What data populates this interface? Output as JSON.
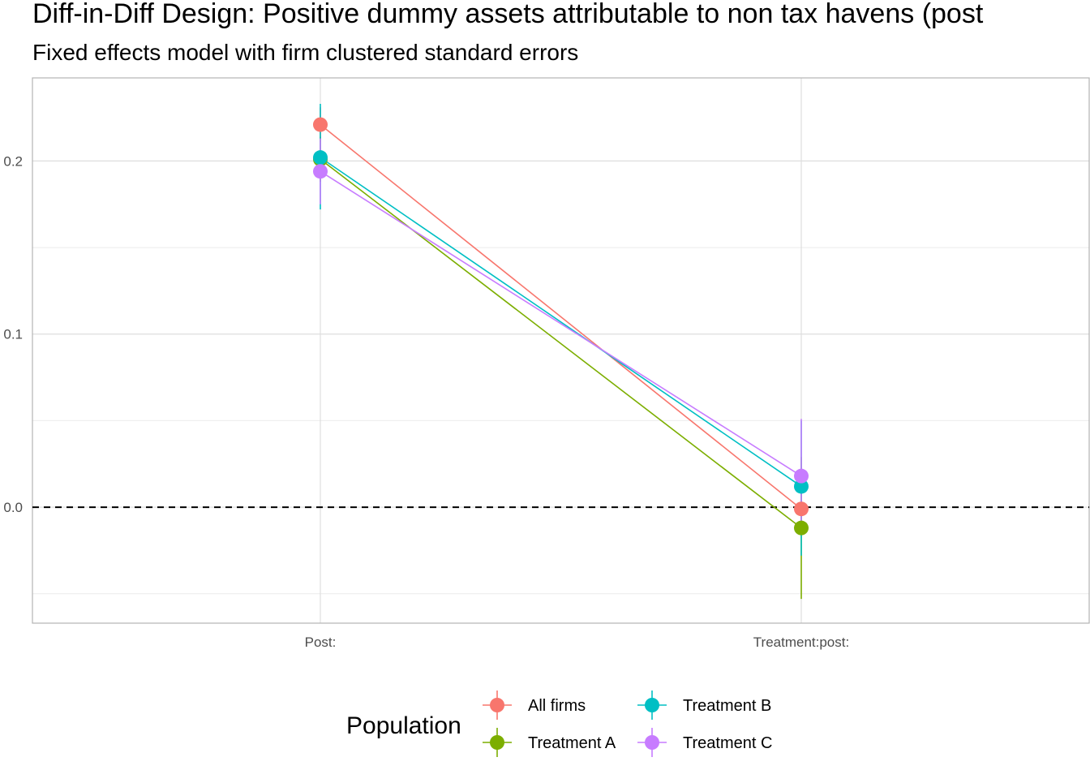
{
  "chart_data": {
    "type": "line",
    "title": "Diff-in-Diff Design: Positive dummy assets attributable to non tax havens (post",
    "subtitle": "Fixed effects model with firm clustered standard errors",
    "xlabel": "",
    "ylabel": "",
    "categories": [
      "Post:",
      "Treatment:post:"
    ],
    "ylim": [
      -0.067,
      0.248
    ],
    "y_ticks": [
      0.0,
      0.1,
      0.2
    ],
    "y_tick_labels": [
      "0.0",
      "0.1",
      "0.2"
    ],
    "grid": true,
    "reference_line": {
      "y": 0.0,
      "style": "dashed"
    },
    "legend": {
      "title": "Population",
      "position": "bottom"
    },
    "series": [
      {
        "name": "All firms",
        "color": "#F8766D",
        "values": [
          0.221,
          -0.001
        ],
        "lower": [
          0.211,
          -0.012
        ],
        "upper": [
          0.231,
          0.01
        ]
      },
      {
        "name": "Treatment A",
        "color": "#7CAE00",
        "values": [
          0.201,
          -0.012
        ],
        "lower": [
          0.188,
          -0.053
        ],
        "upper": [
          0.214,
          0.029
        ]
      },
      {
        "name": "Treatment B",
        "color": "#00BFC4",
        "values": [
          0.202,
          0.012
        ],
        "lower": [
          0.172,
          -0.028
        ],
        "upper": [
          0.233,
          0.05
        ]
      },
      {
        "name": "Treatment C",
        "color": "#C77CFF",
        "values": [
          0.194,
          0.018
        ],
        "lower": [
          0.175,
          -0.014
        ],
        "upper": [
          0.213,
          0.051
        ]
      }
    ]
  }
}
